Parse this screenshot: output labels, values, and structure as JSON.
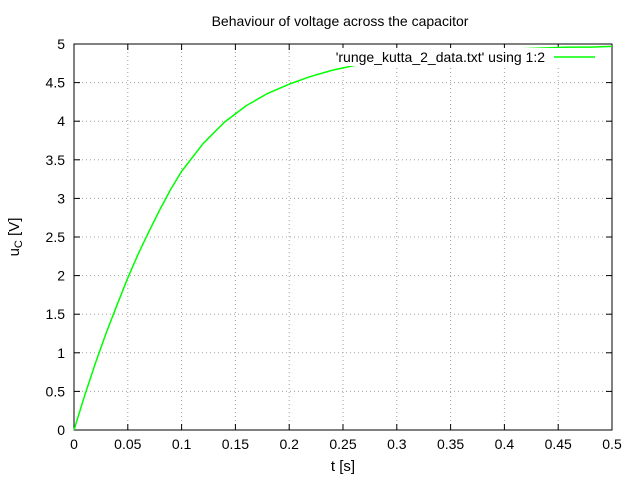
{
  "chart_data": {
    "type": "line",
    "title": "Behaviour of voltage across the capacitor",
    "xlabel": "t [s]",
    "ylabel": {
      "main": "u",
      "sub": "C",
      "unit": " [V]"
    },
    "xlim": [
      0,
      0.5
    ],
    "ylim": [
      0,
      5
    ],
    "xticks": [
      0,
      0.05,
      0.1,
      0.15,
      0.2,
      0.25,
      0.3,
      0.35,
      0.4,
      0.45,
      0.5
    ],
    "yticks": [
      0,
      0.5,
      1,
      1.5,
      2,
      2.5,
      3,
      3.5,
      4,
      4.5,
      5
    ],
    "xtick_labels": [
      "0",
      "0.05",
      "0.1",
      "0.15",
      "0.2",
      "0.25",
      "0.3",
      "0.35",
      "0.4",
      "0.45",
      "0.5"
    ],
    "ytick_labels": [
      "0",
      "0.5",
      "1",
      "1.5",
      "2",
      "2.5",
      "3",
      "3.5",
      "4",
      "4.5",
      "5"
    ],
    "grid": true,
    "legend_position": "top-right",
    "series": [
      {
        "name": "'runge_kutta_2_data.txt' using 1:2",
        "color": "#00ff00",
        "x": [
          0,
          0.01,
          0.02,
          0.03,
          0.04,
          0.05,
          0.06,
          0.07,
          0.08,
          0.09,
          0.1,
          0.12,
          0.14,
          0.16,
          0.18,
          0.2,
          0.22,
          0.24,
          0.26,
          0.28,
          0.3,
          0.32,
          0.34,
          0.36,
          0.38,
          0.4,
          0.42,
          0.44,
          0.46,
          0.48,
          0.5
        ],
        "y": [
          0,
          0.45,
          0.87,
          1.26,
          1.62,
          1.97,
          2.29,
          2.58,
          2.86,
          3.12,
          3.35,
          3.71,
          3.99,
          4.2,
          4.36,
          4.48,
          4.58,
          4.66,
          4.72,
          4.77,
          4.81,
          4.84,
          4.87,
          4.89,
          4.91,
          4.93,
          4.94,
          4.95,
          4.96,
          4.96,
          4.97
        ]
      }
    ]
  }
}
